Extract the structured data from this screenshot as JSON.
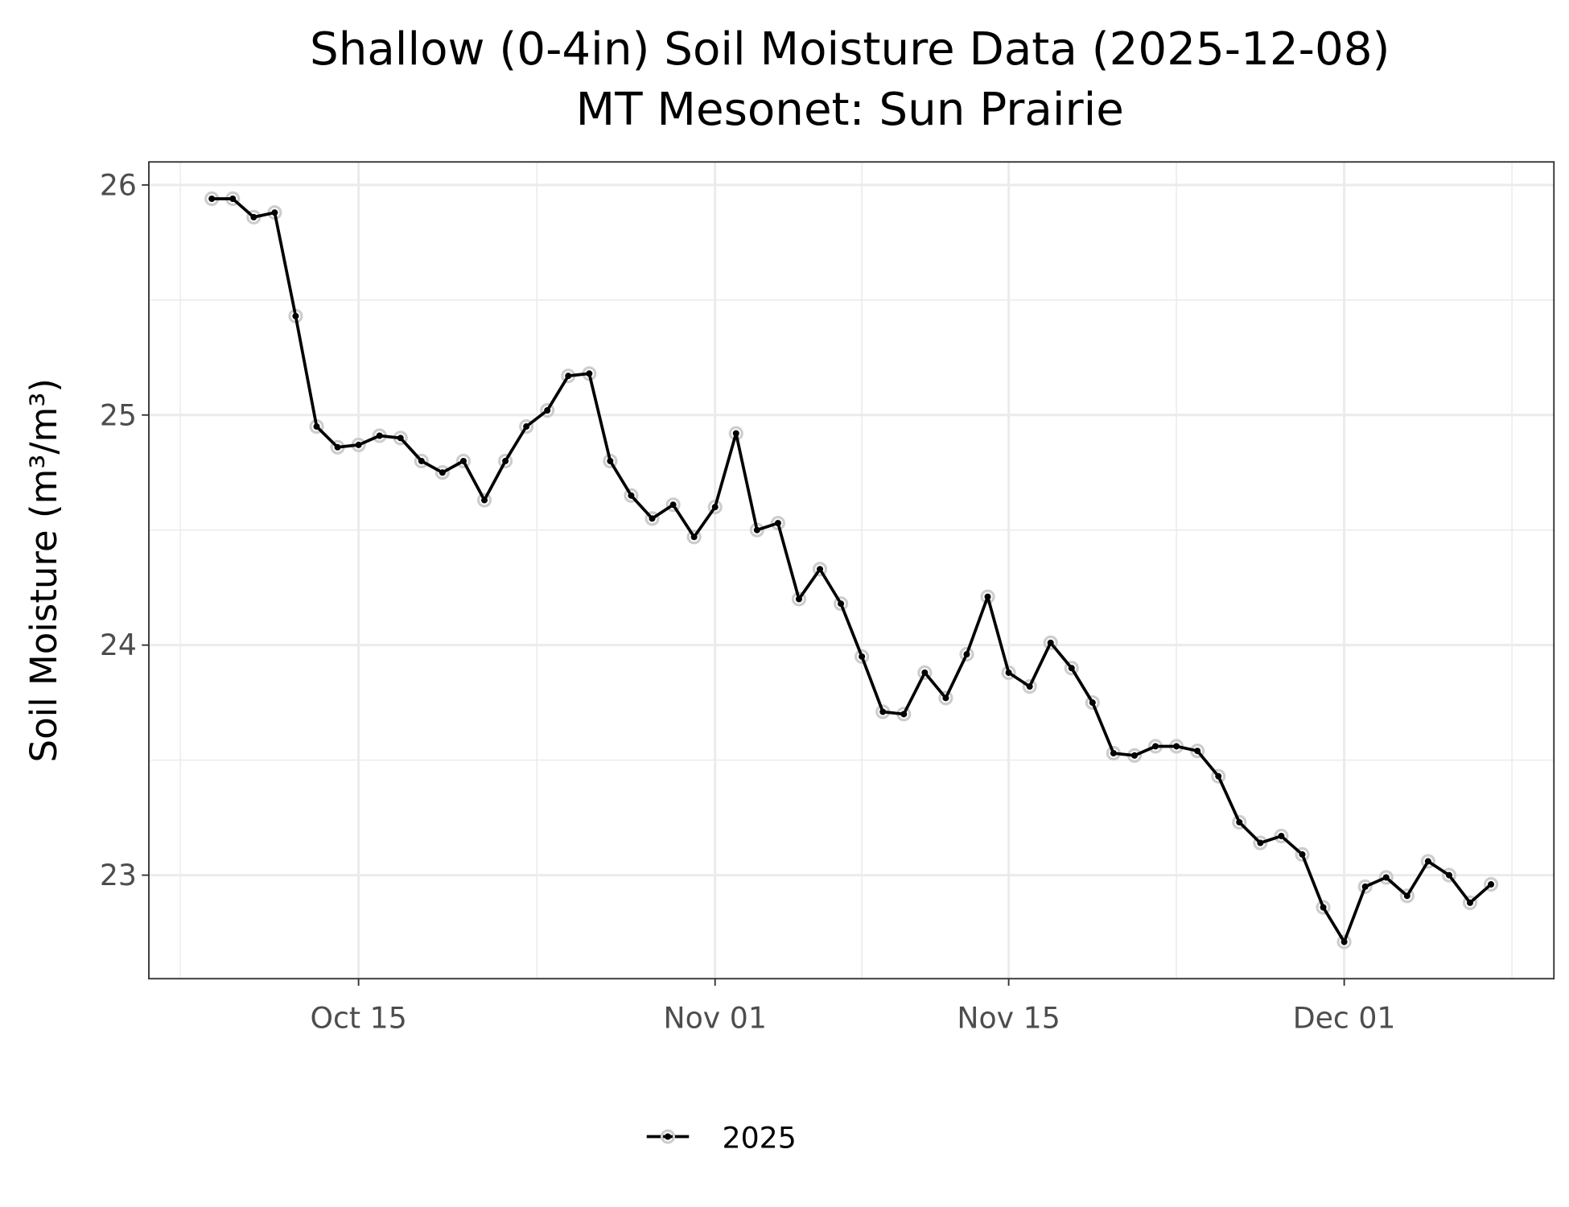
{
  "chart_data": {
    "type": "line",
    "title": "Shallow (0-4in) Soil Moisture Data (2025-12-08)",
    "subtitle": "MT Mesonet: Sun Prairie",
    "xlabel": "",
    "ylabel": "Soil Moisture (m³/m³)",
    "ylim": [
      22.55,
      26.1
    ],
    "xlim": [
      "2025-10-05",
      "2025-12-11"
    ],
    "yticks": [
      23,
      24,
      25,
      26
    ],
    "ytick_labels": [
      "23",
      "24",
      "25",
      "26"
    ],
    "xticks": [
      "2025-10-15",
      "2025-11-01",
      "2025-11-15",
      "2025-12-01"
    ],
    "xtick_labels": [
      "Oct 15",
      "Nov 01",
      "Nov 15",
      "Dec 01"
    ],
    "grid": true,
    "legend": {
      "position": "bottom",
      "entries": [
        "2025"
      ]
    },
    "colors": {
      "line": "#000000",
      "halo": "#cccccc",
      "grid": "#ebebeb",
      "border": "#333333"
    },
    "series": [
      {
        "name": "2025",
        "start_date": "2025-10-08",
        "values": [
          25.94,
          25.94,
          25.86,
          25.88,
          25.43,
          24.95,
          24.86,
          24.87,
          24.91,
          24.9,
          24.8,
          24.75,
          24.8,
          24.63,
          24.8,
          24.95,
          25.02,
          25.17,
          25.18,
          24.8,
          24.65,
          24.55,
          24.61,
          24.47,
          24.6,
          24.92,
          24.5,
          24.53,
          24.2,
          24.33,
          24.18,
          23.95,
          23.71,
          23.7,
          23.88,
          23.77,
          23.96,
          24.21,
          23.88,
          23.82,
          24.01,
          23.9,
          23.75,
          23.53,
          23.52,
          23.56,
          23.56,
          23.54,
          23.43,
          23.23,
          23.14,
          23.17,
          23.09,
          22.86,
          22.71,
          22.95,
          22.99,
          22.91,
          23.06,
          23.0,
          22.88,
          22.96
        ]
      }
    ]
  }
}
